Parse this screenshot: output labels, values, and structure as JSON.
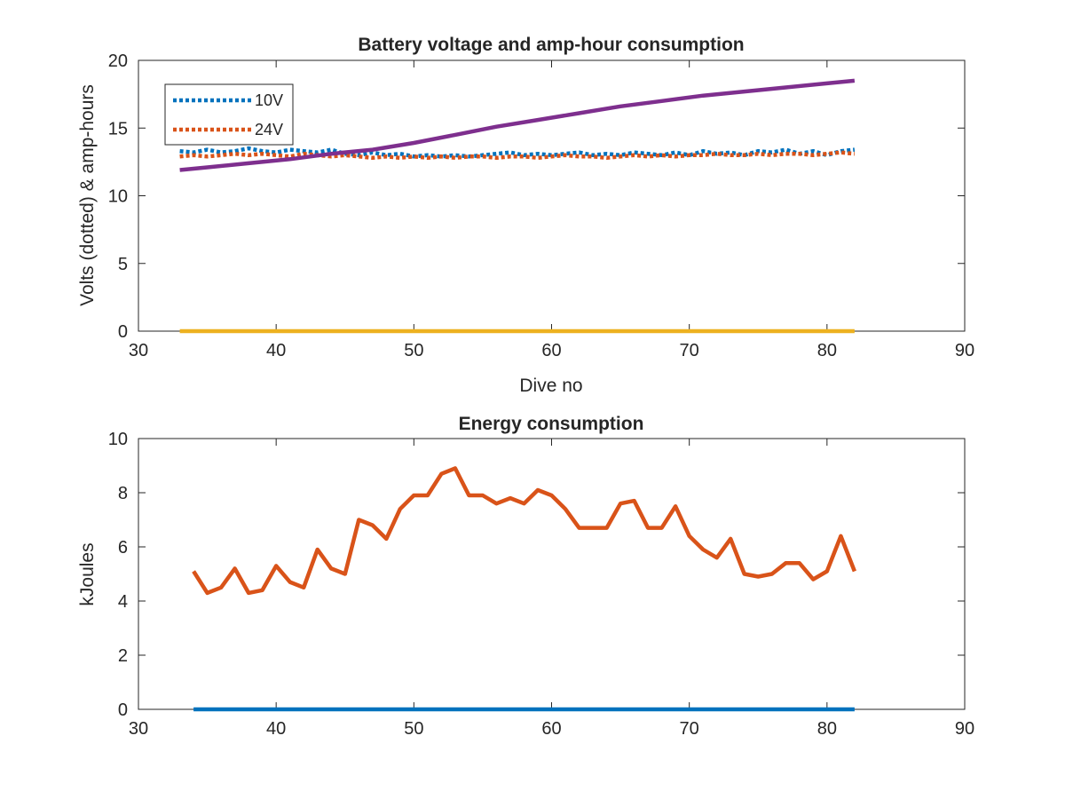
{
  "chart_data": [
    {
      "type": "line",
      "title": "Battery voltage and amp-hour consumption",
      "xlabel": "Dive no",
      "ylabel": "Volts (dotted) & amp-hours",
      "xlim": [
        30,
        90
      ],
      "ylim": [
        0,
        20
      ],
      "xticks": [
        30,
        40,
        50,
        60,
        70,
        80,
        90
      ],
      "yticks": [
        0,
        5,
        10,
        15,
        20
      ],
      "grid": false,
      "legend_position": "top-left",
      "series": [
        {
          "name": "10V",
          "color": "#0072BD",
          "style": "dotted",
          "x": [
            33,
            34,
            35,
            36,
            37,
            38,
            39,
            40,
            41,
            42,
            43,
            44,
            45,
            46,
            47,
            48,
            49,
            50,
            51,
            52,
            53,
            54,
            55,
            56,
            57,
            58,
            59,
            60,
            61,
            62,
            63,
            64,
            65,
            66,
            67,
            68,
            69,
            70,
            71,
            72,
            73,
            74,
            75,
            76,
            77,
            78,
            79,
            80,
            81,
            82
          ],
          "y": [
            13.3,
            13.2,
            13.4,
            13.2,
            13.3,
            13.5,
            13.3,
            13.2,
            13.4,
            13.3,
            13.2,
            13.4,
            13.1,
            13.0,
            13.2,
            13.0,
            13.1,
            12.9,
            13.0,
            12.9,
            13.0,
            12.9,
            13.0,
            13.1,
            13.2,
            13.0,
            13.1,
            13.0,
            13.1,
            13.2,
            13.0,
            13.1,
            13.0,
            13.2,
            13.1,
            13.0,
            13.2,
            13.0,
            13.3,
            13.1,
            13.2,
            13.0,
            13.3,
            13.2,
            13.4,
            13.1,
            13.3,
            13.0,
            13.3,
            13.4
          ]
        },
        {
          "name": "24V",
          "color": "#D95319",
          "style": "dotted",
          "x": [
            33,
            34,
            35,
            36,
            37,
            38,
            39,
            40,
            41,
            42,
            43,
            44,
            45,
            46,
            47,
            48,
            49,
            50,
            51,
            52,
            53,
            54,
            55,
            56,
            57,
            58,
            59,
            60,
            61,
            62,
            63,
            64,
            65,
            66,
            67,
            68,
            69,
            70,
            71,
            72,
            73,
            74,
            75,
            76,
            77,
            78,
            79,
            80,
            81,
            82
          ],
          "y": [
            12.9,
            13.0,
            12.9,
            13.0,
            13.1,
            13.0,
            13.1,
            13.0,
            12.9,
            13.1,
            13.0,
            12.9,
            13.0,
            12.9,
            12.8,
            12.9,
            12.8,
            12.9,
            12.8,
            12.9,
            12.8,
            12.9,
            12.9,
            12.8,
            12.9,
            12.9,
            12.8,
            12.9,
            13.0,
            12.9,
            12.9,
            12.8,
            12.9,
            13.0,
            12.9,
            13.0,
            12.9,
            13.0,
            13.0,
            13.1,
            13.0,
            13.0,
            13.1,
            13.0,
            13.1,
            13.1,
            13.0,
            13.1,
            13.2,
            13.1
          ]
        },
        {
          "color": "#EDB120",
          "style": "solid",
          "x": [
            33,
            82
          ],
          "y": [
            0,
            0
          ]
        },
        {
          "color": "#7E2F8E",
          "style": "solid",
          "x": [
            33,
            35,
            38,
            41,
            44,
            47,
            50,
            53,
            56,
            59,
            62,
            65,
            68,
            71,
            74,
            77,
            80,
            82
          ],
          "y": [
            11.9,
            12.1,
            12.4,
            12.7,
            13.1,
            13.4,
            13.9,
            14.5,
            15.1,
            15.6,
            16.1,
            16.6,
            17.0,
            17.4,
            17.7,
            18.0,
            18.3,
            18.5
          ]
        }
      ]
    },
    {
      "type": "line",
      "title": "Energy consumption",
      "xlabel": "",
      "ylabel": "kJoules",
      "xlim": [
        30,
        90
      ],
      "ylim": [
        0,
        10
      ],
      "xticks": [
        30,
        40,
        50,
        60,
        70,
        80,
        90
      ],
      "yticks": [
        0,
        2,
        4,
        6,
        8,
        10
      ],
      "grid": false,
      "series": [
        {
          "color": "#0072BD",
          "style": "solid",
          "x": [
            34,
            82
          ],
          "y": [
            0,
            0
          ]
        },
        {
          "color": "#D95319",
          "style": "solid",
          "x": [
            34,
            35,
            36,
            37,
            38,
            39,
            40,
            41,
            42,
            43,
            44,
            45,
            46,
            47,
            48,
            49,
            50,
            51,
            52,
            53,
            54,
            55,
            56,
            57,
            58,
            59,
            60,
            61,
            62,
            63,
            64,
            65,
            66,
            67,
            68,
            69,
            70,
            71,
            72,
            73,
            74,
            75,
            76,
            77,
            78,
            79,
            80,
            81,
            82
          ],
          "y": [
            5.1,
            4.3,
            4.5,
            5.2,
            4.3,
            4.4,
            5.3,
            4.7,
            4.5,
            5.9,
            5.2,
            5.0,
            7.0,
            6.8,
            6.3,
            7.4,
            7.9,
            7.9,
            8.7,
            8.9,
            7.9,
            7.9,
            7.6,
            7.8,
            7.6,
            8.1,
            7.9,
            7.4,
            6.7,
            6.7,
            6.7,
            7.6,
            7.7,
            6.7,
            6.7,
            7.5,
            6.4,
            5.9,
            5.6,
            6.3,
            5.0,
            4.9,
            5.0,
            5.4,
            5.4,
            4.8,
            5.1,
            6.4,
            5.1
          ]
        }
      ]
    }
  ]
}
